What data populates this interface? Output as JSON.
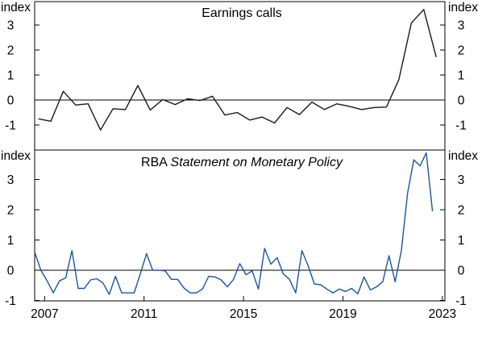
{
  "chart_data": [
    {
      "type": "line",
      "title": "Earnings calls",
      "ylabel_left": "index",
      "ylabel_right": "index",
      "ylim": [
        -1.5,
        4
      ],
      "yticks": [
        "3",
        "2",
        "1",
        "0",
        "-1"
      ],
      "ytick_values": [
        3,
        2,
        1,
        0,
        -1
      ],
      "line_color": "#1a1a1a",
      "series": [
        {
          "name": "Earnings calls",
          "points": [
            [
              2006.75,
              -0.75
            ],
            [
              2007.25,
              -0.85
            ],
            [
              2007.75,
              0.35
            ],
            [
              2008.25,
              -0.2
            ],
            [
              2008.75,
              -0.15
            ],
            [
              2009.25,
              -1.2
            ],
            [
              2009.75,
              -0.35
            ],
            [
              2010.25,
              -0.38
            ],
            [
              2010.75,
              0.58
            ],
            [
              2011.25,
              -0.4
            ],
            [
              2011.75,
              0.02
            ],
            [
              2012.25,
              -0.18
            ],
            [
              2012.75,
              0.05
            ],
            [
              2013.25,
              -0.02
            ],
            [
              2013.75,
              0.15
            ],
            [
              2014.25,
              -0.6
            ],
            [
              2014.75,
              -0.5
            ],
            [
              2015.25,
              -0.8
            ],
            [
              2015.75,
              -0.68
            ],
            [
              2016.25,
              -0.92
            ],
            [
              2016.75,
              -0.3
            ],
            [
              2017.25,
              -0.58
            ],
            [
              2017.75,
              -0.08
            ],
            [
              2018.25,
              -0.38
            ],
            [
              2018.75,
              -0.15
            ],
            [
              2019.25,
              -0.25
            ],
            [
              2019.75,
              -0.38
            ],
            [
              2020.25,
              -0.3
            ],
            [
              2020.75,
              -0.28
            ],
            [
              2021.25,
              0.82
            ],
            [
              2021.75,
              3.08
            ],
            [
              2022.25,
              3.62
            ],
            [
              2022.75,
              1.72
            ]
          ]
        }
      ]
    },
    {
      "type": "line",
      "title_normal": "RBA",
      "title_italic": "Statement on Monetary Policy",
      "ylabel_left": "index",
      "ylabel_right": "index",
      "xlim": [
        2006.6,
        2023.1
      ],
      "ylim": [
        -1,
        4
      ],
      "yticks": [
        "3",
        "2",
        "1",
        "0",
        "-1"
      ],
      "ytick_values": [
        3,
        2,
        1,
        0,
        -1
      ],
      "xticks": [
        "2007",
        "2011",
        "2015",
        "2019",
        "2023"
      ],
      "xtick_values": [
        2007,
        2011,
        2015,
        2019,
        2023
      ],
      "line_color": "#1f5596",
      "series": [
        {
          "name": "RBA Statement on Monetary Policy",
          "points": [
            [
              2006.6,
              0.6
            ],
            [
              2006.85,
              0.0
            ],
            [
              2007.1,
              -0.35
            ],
            [
              2007.35,
              -0.75
            ],
            [
              2007.6,
              -0.35
            ],
            [
              2007.85,
              -0.25
            ],
            [
              2008.1,
              0.65
            ],
            [
              2008.35,
              -0.6
            ],
            [
              2008.6,
              -0.6
            ],
            [
              2008.85,
              -0.32
            ],
            [
              2009.1,
              -0.28
            ],
            [
              2009.35,
              -0.42
            ],
            [
              2009.6,
              -0.8
            ],
            [
              2009.85,
              -0.2
            ],
            [
              2010.1,
              -0.75
            ],
            [
              2010.35,
              -0.75
            ],
            [
              2010.6,
              -0.75
            ],
            [
              2010.85,
              -0.12
            ],
            [
              2011.1,
              0.55
            ],
            [
              2011.35,
              0.0
            ],
            [
              2011.6,
              0.0
            ],
            [
              2011.85,
              -0.02
            ],
            [
              2012.1,
              -0.3
            ],
            [
              2012.35,
              -0.3
            ],
            [
              2012.6,
              -0.58
            ],
            [
              2012.85,
              -0.75
            ],
            [
              2013.1,
              -0.75
            ],
            [
              2013.35,
              -0.62
            ],
            [
              2013.6,
              -0.2
            ],
            [
              2013.85,
              -0.22
            ],
            [
              2014.1,
              -0.32
            ],
            [
              2014.35,
              -0.55
            ],
            [
              2014.6,
              -0.3
            ],
            [
              2014.85,
              0.22
            ],
            [
              2015.1,
              -0.15
            ],
            [
              2015.35,
              -0.02
            ],
            [
              2015.6,
              -0.62
            ],
            [
              2015.85,
              0.72
            ],
            [
              2016.1,
              0.2
            ],
            [
              2016.35,
              0.42
            ],
            [
              2016.6,
              -0.12
            ],
            [
              2016.85,
              -0.3
            ],
            [
              2017.1,
              -0.75
            ],
            [
              2017.35,
              0.65
            ],
            [
              2017.6,
              0.15
            ],
            [
              2017.85,
              -0.45
            ],
            [
              2018.1,
              -0.48
            ],
            [
              2018.35,
              -0.62
            ],
            [
              2018.6,
              -0.75
            ],
            [
              2018.85,
              -0.62
            ],
            [
              2019.1,
              -0.7
            ],
            [
              2019.35,
              -0.6
            ],
            [
              2019.6,
              -0.78
            ],
            [
              2019.85,
              -0.22
            ],
            [
              2020.1,
              -0.65
            ],
            [
              2020.35,
              -0.55
            ],
            [
              2020.6,
              -0.38
            ],
            [
              2020.85,
              0.48
            ],
            [
              2021.1,
              -0.38
            ],
            [
              2021.35,
              0.65
            ],
            [
              2021.6,
              2.55
            ],
            [
              2021.85,
              3.65
            ],
            [
              2022.1,
              3.45
            ],
            [
              2022.35,
              3.88
            ],
            [
              2022.6,
              1.95
            ]
          ]
        }
      ]
    }
  ],
  "footnote_fragment": "...  ...  ...  ...  ...  ..."
}
